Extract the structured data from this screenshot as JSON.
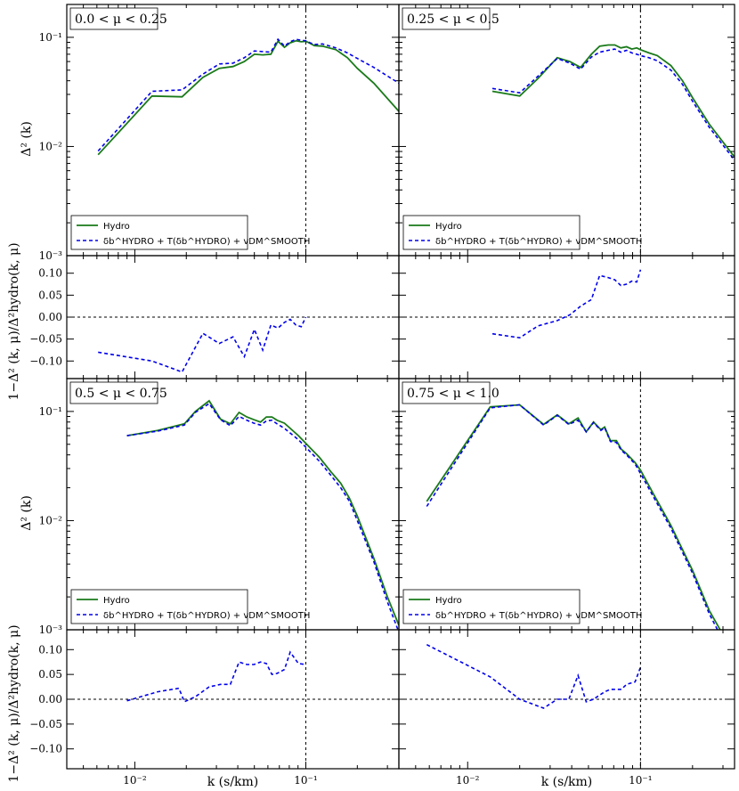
{
  "chart_data": {
    "type": "line",
    "xlabel": "k (s/km)",
    "ylabel_power": "Δ² (k)",
    "ylabel_ratio": "1−Δ² (k, μ)/Δ²hydro(k, μ)",
    "x_scale": "log",
    "xlim": [
      0.004,
      0.35
    ],
    "x_ticks": [
      0.01,
      0.1
    ],
    "x_tick_labels": [
      "10⁻²",
      "10⁻¹"
    ],
    "power_y_scale": "log",
    "power_ylim": [
      0.001,
      0.2
    ],
    "power_y_ticks": [
      0.001,
      0.01,
      0.1
    ],
    "power_y_tick_labels": [
      "10⁻³",
      "10⁻²",
      "10⁻¹"
    ],
    "ratio_ylim": [
      -0.14,
      0.14
    ],
    "ratio_y_ticks": [
      0.1,
      0.05,
      0.0,
      -0.05,
      -0.1
    ],
    "ratio_y_tick_labels": [
      "0.10",
      "0.05",
      "0.00",
      "−0.05",
      "−0.10"
    ],
    "vline_k": 0.1,
    "legend": {
      "location": "lower-left",
      "entries": [
        {
          "label": "Hydro",
          "style": "solid",
          "color": "#1a7a1a"
        },
        {
          "label": "δb^HYDRO + T(δb^HYDRO) + vDM^SMOOTH",
          "style": "dashed",
          "color": "#0000ee"
        }
      ]
    },
    "panels": [
      {
        "mu_range": "0.0 < μ < 0.25",
        "series": [
          {
            "name": "Hydro",
            "x": [
              0.0061,
              0.0126,
              0.0189,
              0.025,
              0.0312,
              0.0375,
              0.0437,
              0.05,
              0.056,
              0.0624,
              0.0687,
              0.075,
              0.081,
              0.0875,
              0.094,
              0.1,
              0.106,
              0.112,
              0.125,
              0.15,
              0.175,
              0.2,
              0.25,
              0.35
            ],
            "y": [
              0.0084,
              0.029,
              0.0285,
              0.043,
              0.052,
              0.054,
              0.06,
              0.07,
              0.069,
              0.07,
              0.092,
              0.081,
              0.089,
              0.093,
              0.091,
              0.092,
              0.088,
              0.084,
              0.083,
              0.077,
              0.065,
              0.052,
              0.038,
              0.021
            ]
          },
          {
            "name": "δb^HYDRO + T(δb^HYDRO) + vDM^SMOOTH",
            "x": [
              0.0061,
              0.0126,
              0.0189,
              0.025,
              0.0312,
              0.0375,
              0.0437,
              0.05,
              0.056,
              0.0624,
              0.0687,
              0.075,
              0.081,
              0.0875,
              0.094,
              0.1,
              0.106,
              0.112,
              0.125,
              0.15,
              0.175,
              0.2,
              0.25,
              0.35
            ],
            "y": [
              0.0091,
              0.032,
              0.033,
              0.046,
              0.057,
              0.058,
              0.065,
              0.075,
              0.074,
              0.073,
              0.096,
              0.083,
              0.091,
              0.096,
              0.094,
              0.093,
              0.089,
              0.086,
              0.087,
              0.08,
              0.072,
              0.064,
              0.053,
              0.038
            ]
          }
        ],
        "ratio": {
          "x": [
            0.0061,
            0.0126,
            0.0189,
            0.025,
            0.0312,
            0.0375,
            0.0437,
            0.05,
            0.056,
            0.0624,
            0.0687,
            0.075,
            0.081,
            0.0875,
            0.094,
            0.1
          ],
          "y": [
            -0.08,
            -0.1,
            -0.125,
            -0.037,
            -0.06,
            -0.045,
            -0.09,
            -0.028,
            -0.075,
            -0.018,
            -0.025,
            -0.012,
            -0.005,
            -0.018,
            -0.022,
            0.0
          ]
        }
      },
      {
        "mu_range": "0.25 < μ < 0.5",
        "series": [
          {
            "name": "Hydro",
            "x": [
              0.0139,
              0.02,
              0.0255,
              0.033,
              0.039,
              0.045,
              0.052,
              0.058,
              0.065,
              0.071,
              0.077,
              0.083,
              0.089,
              0.095,
              0.1,
              0.112,
              0.125,
              0.15,
              0.175,
              0.2,
              0.25,
              0.35
            ],
            "y": [
              0.032,
              0.029,
              0.042,
              0.065,
              0.06,
              0.053,
              0.07,
              0.083,
              0.085,
              0.085,
              0.08,
              0.082,
              0.078,
              0.08,
              0.077,
              0.072,
              0.068,
              0.055,
              0.04,
              0.028,
              0.016,
              0.008
            ]
          },
          {
            "name": "δb^HYDRO + T(δb^HYDRO) + vDM^SMOOTH",
            "x": [
              0.0139,
              0.02,
              0.0255,
              0.033,
              0.039,
              0.045,
              0.052,
              0.058,
              0.065,
              0.071,
              0.077,
              0.083,
              0.089,
              0.095,
              0.1,
              0.112,
              0.125,
              0.15,
              0.175,
              0.2,
              0.25,
              0.35
            ],
            "y": [
              0.034,
              0.031,
              0.044,
              0.064,
              0.058,
              0.051,
              0.066,
              0.073,
              0.076,
              0.078,
              0.073,
              0.076,
              0.072,
              0.07,
              0.068,
              0.065,
              0.061,
              0.05,
              0.037,
              0.026,
              0.015,
              0.0075
            ]
          }
        ],
        "ratio": {
          "x": [
            0.0139,
            0.02,
            0.0255,
            0.033,
            0.039,
            0.045,
            0.052,
            0.058,
            0.065,
            0.071,
            0.077,
            0.083,
            0.089,
            0.095,
            0.1
          ],
          "y": [
            -0.038,
            -0.047,
            -0.02,
            -0.008,
            0.005,
            0.025,
            0.04,
            0.095,
            0.09,
            0.085,
            0.072,
            0.075,
            0.082,
            0.08,
            0.108
          ]
        }
      },
      {
        "mu_range": "0.5 < μ < 0.75",
        "series": [
          {
            "name": "Hydro",
            "x": [
              0.009,
              0.0136,
              0.0195,
              0.0226,
              0.0272,
              0.0317,
              0.0362,
              0.0407,
              0.0452,
              0.0498,
              0.0543,
              0.0588,
              0.0633,
              0.0679,
              0.075,
              0.0905,
              0.1,
              0.12,
              0.14,
              0.16,
              0.18,
              0.2,
              0.25,
              0.3,
              0.35
            ],
            "y": [
              0.06,
              0.067,
              0.077,
              0.1,
              0.125,
              0.085,
              0.077,
              0.098,
              0.089,
              0.084,
              0.08,
              0.089,
              0.089,
              0.083,
              0.078,
              0.06,
              0.051,
              0.038,
              0.028,
              0.022,
              0.016,
              0.011,
              0.0045,
              0.002,
              0.0011
            ]
          },
          {
            "name": "δb^HYDRO + T(δb^HYDRO) + vDM^SMOOTH",
            "x": [
              0.009,
              0.0136,
              0.0195,
              0.0226,
              0.0272,
              0.0317,
              0.0362,
              0.0407,
              0.0452,
              0.0498,
              0.0543,
              0.0588,
              0.0633,
              0.0679,
              0.075,
              0.0905,
              0.1,
              0.12,
              0.14,
              0.16,
              0.18,
              0.2,
              0.25,
              0.3,
              0.35
            ],
            "y": [
              0.06,
              0.066,
              0.075,
              0.098,
              0.118,
              0.084,
              0.074,
              0.09,
              0.083,
              0.078,
              0.075,
              0.082,
              0.083,
              0.077,
              0.07,
              0.055,
              0.047,
              0.035,
              0.026,
              0.02,
              0.015,
              0.01,
              0.0042,
              0.0018,
              0.00095
            ]
          }
        ],
        "ratio": {
          "x": [
            0.009,
            0.0136,
            0.0181,
            0.0195,
            0.0226,
            0.0272,
            0.0317,
            0.0362,
            0.0407,
            0.0452,
            0.0498,
            0.0543,
            0.0588,
            0.0633,
            0.0679,
            0.075,
            0.081,
            0.0905,
            0.1
          ],
          "y": [
            -0.003,
            0.015,
            0.022,
            -0.005,
            0.005,
            0.025,
            0.03,
            0.03,
            0.075,
            0.07,
            0.07,
            0.075,
            0.072,
            0.05,
            0.052,
            0.06,
            0.095,
            0.072,
            0.07
          ]
        }
      },
      {
        "mu_range": "0.75 < μ < 1.0",
        "series": [
          {
            "name": "Hydro",
            "x": [
              0.0058,
              0.0135,
              0.02,
              0.0275,
              0.033,
              0.0385,
              0.0435,
              0.0485,
              0.0535,
              0.059,
              0.062,
              0.067,
              0.0725,
              0.0775,
              0.083,
              0.093,
              0.1,
              0.12,
              0.15,
              0.2,
              0.25,
              0.3
            ],
            "y": [
              0.015,
              0.11,
              0.115,
              0.076,
              0.093,
              0.077,
              0.087,
              0.065,
              0.08,
              0.068,
              0.072,
              0.054,
              0.054,
              0.045,
              0.041,
              0.034,
              0.029,
              0.017,
              0.009,
              0.0035,
              0.0015,
              0.0009
            ]
          },
          {
            "name": "δb^HYDRO + T(δb^HYDRO) + vDM^SMOOTH",
            "x": [
              0.0058,
              0.0135,
              0.02,
              0.0275,
              0.033,
              0.0385,
              0.0435,
              0.0485,
              0.0535,
              0.059,
              0.062,
              0.067,
              0.0725,
              0.0775,
              0.083,
              0.093,
              0.1,
              0.12,
              0.15,
              0.2,
              0.25,
              0.3
            ],
            "y": [
              0.0135,
              0.108,
              0.115,
              0.075,
              0.092,
              0.076,
              0.083,
              0.065,
              0.079,
              0.067,
              0.071,
              0.053,
              0.052,
              0.044,
              0.04,
              0.033,
              0.027,
              0.016,
              0.0085,
              0.0033,
              0.0014,
              0.0008
            ]
          }
        ],
        "ratio": {
          "x": [
            0.0058,
            0.0135,
            0.02,
            0.0275,
            0.033,
            0.0385,
            0.0435,
            0.0485,
            0.0535,
            0.059,
            0.062,
            0.067,
            0.0725,
            0.0775,
            0.083,
            0.093,
            0.1
          ],
          "y": [
            0.11,
            0.045,
            0.0,
            -0.018,
            0.0,
            0.0,
            0.048,
            -0.005,
            0.0,
            0.01,
            0.015,
            0.02,
            0.02,
            0.02,
            0.03,
            0.035,
            0.065
          ]
        }
      }
    ]
  }
}
